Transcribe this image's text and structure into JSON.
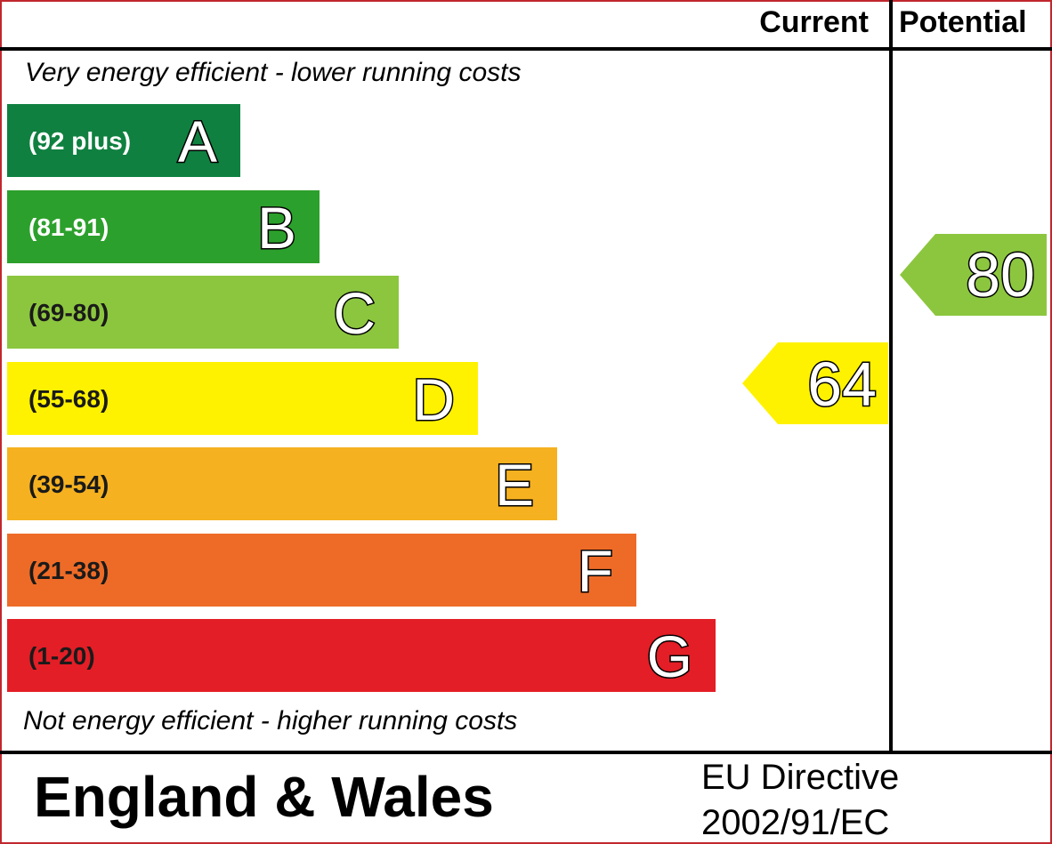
{
  "chart_data": {
    "type": "bar",
    "header": {
      "current": "Current",
      "potential": "Potential"
    },
    "top_note": "Very energy efficient - lower running costs",
    "bottom_note": "Not energy efficient - higher running costs",
    "bands": [
      {
        "letter": "A",
        "range": "(92 plus)",
        "color": "#0f8040"
      },
      {
        "letter": "B",
        "range": "(81-91)",
        "color": "#2ca02c"
      },
      {
        "letter": "C",
        "range": "(69-80)",
        "color": "#8cc63f"
      },
      {
        "letter": "D",
        "range": "(55-68)",
        "color": "#fff200"
      },
      {
        "letter": "E",
        "range": "(39-54)",
        "color": "#f5b120"
      },
      {
        "letter": "F",
        "range": "(21-38)",
        "color": "#ee6b27"
      },
      {
        "letter": "G",
        "range": "(1-20)",
        "color": "#e31e26"
      }
    ],
    "current": {
      "value": 64,
      "band": "D",
      "color": "#fff200"
    },
    "potential": {
      "value": 80,
      "band": "C",
      "color": "#8cc63f"
    },
    "footer": {
      "region": "England & Wales",
      "directive_line1": "EU Directive",
      "directive_line2": "2002/91/EC"
    },
    "colors": {
      "border": "#c0272d",
      "line": "#000000"
    }
  }
}
